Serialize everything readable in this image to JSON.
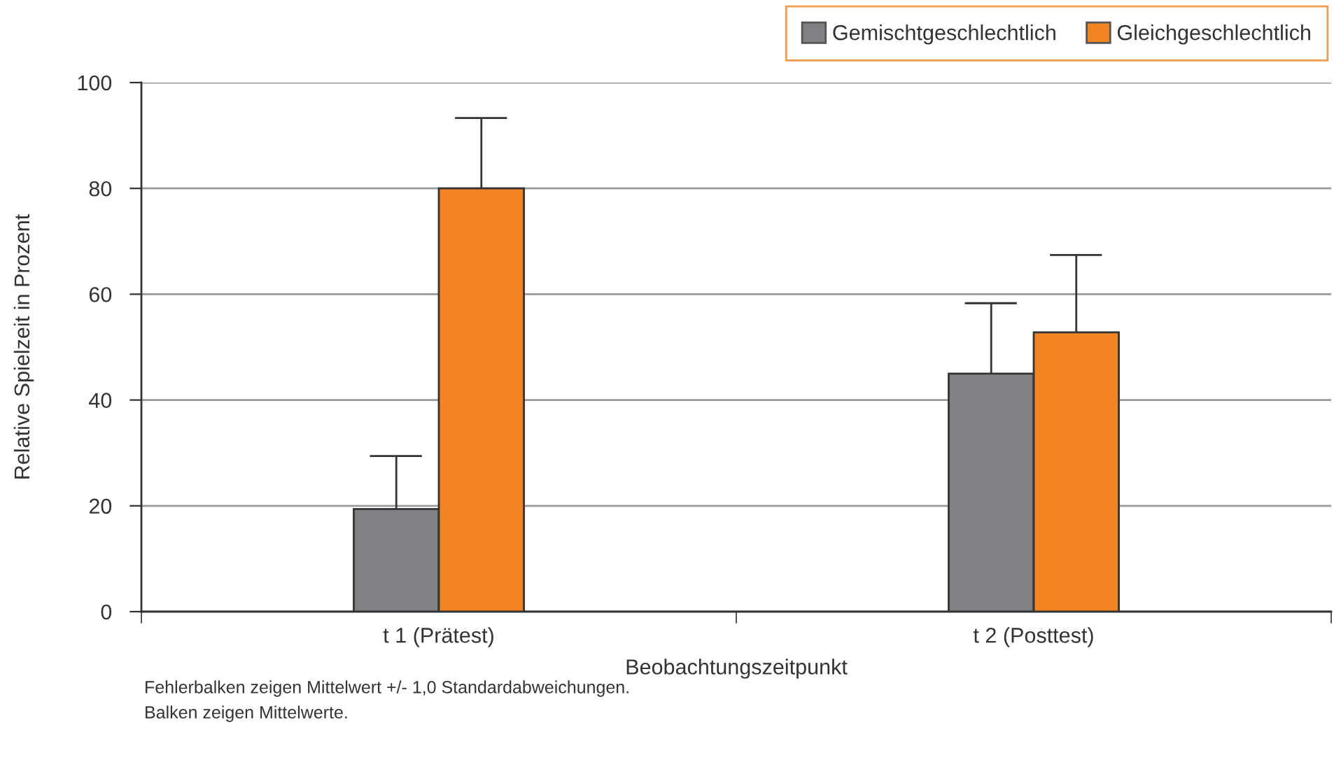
{
  "chart_data": {
    "type": "bar",
    "categories": [
      "t 1 (Prätest)",
      "t 2 (Posttest)"
    ],
    "series": [
      {
        "name": "Gemischtgeschlechtlich",
        "color": "#808184",
        "values": [
          19.4,
          45.0
        ],
        "errors": [
          [
            19.4,
            29.4
          ],
          [
            45.0,
            58.3
          ]
        ]
      },
      {
        "name": "Gleichgeschlechtlich",
        "color": "#f28422",
        "values": [
          80.0,
          52.8
        ],
        "errors": [
          [
            80.0,
            93.3
          ],
          [
            52.8,
            67.4
          ]
        ]
      }
    ],
    "xlabel": "Beobachtungszeitpunkt",
    "ylabel": "Relative Spielzeit in Prozent",
    "ylim": [
      0,
      100
    ],
    "yticks": [
      0,
      20,
      40,
      60,
      80,
      100
    ],
    "grid": "y",
    "legend": "top right",
    "annotations": [
      "Fehlerbalken zeigen Mittelwert +/- 1,0 Standardabweichungen.",
      "Balken zeigen Mittelwerte."
    ]
  }
}
